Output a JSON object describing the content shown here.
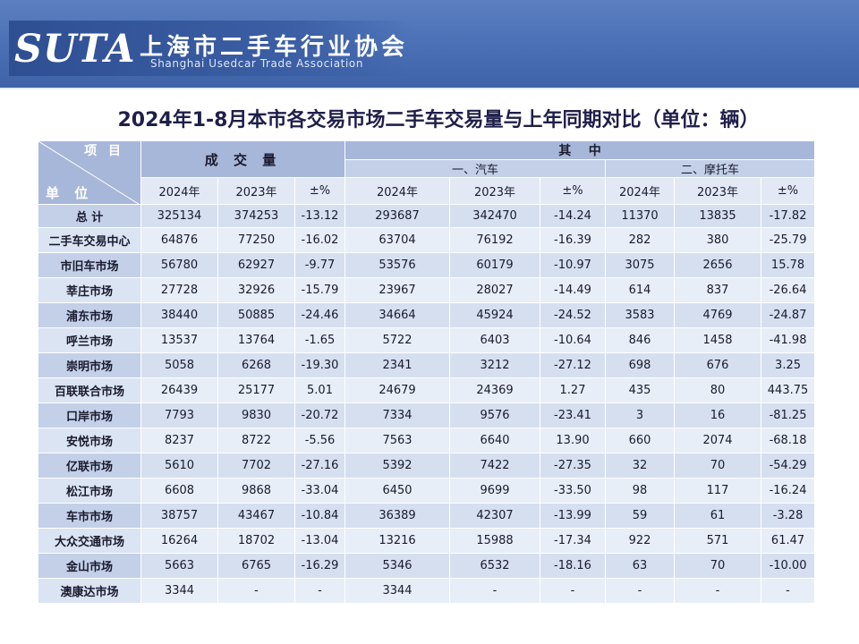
{
  "header": {
    "logo_text": "SUTA",
    "org_name_cn": "上海市二手车行业协会",
    "org_name_en": "Shanghai Usedcar Trade Association",
    "colors": {
      "banner": "#4a6fb5",
      "header_cell": "#a7b7d9",
      "row_a": "#d5dff0",
      "row_b": "#e8eef8"
    }
  },
  "title": "2024年1-8月本市各交易市场二手车交易量与上年同期对比（单位：辆）",
  "table": {
    "corner_top": "项 目",
    "corner_bottom": "单 位",
    "group_total": "成 交 量",
    "group_of_which": "其    中",
    "sub_car": "一、汽车",
    "sub_moto": "二、摩托车",
    "columns": [
      "2024年",
      "2023年",
      "±%",
      "2024年",
      "2023年",
      "±%",
      "2024年",
      "2023年",
      "±%"
    ],
    "rows": [
      {
        "name": "总 计",
        "values": [
          "325134",
          "374253",
          "-13.12",
          "293687",
          "342470",
          "-14.24",
          "11370",
          "13835",
          "-17.82"
        ]
      },
      {
        "name": "二手车交易中心",
        "values": [
          "64876",
          "77250",
          "-16.02",
          "63704",
          "76192",
          "-16.39",
          "282",
          "380",
          "-25.79"
        ]
      },
      {
        "name": "市旧车市场",
        "values": [
          "56780",
          "62927",
          "-9.77",
          "53576",
          "60179",
          "-10.97",
          "3075",
          "2656",
          "15.78"
        ]
      },
      {
        "name": "莘庄市场",
        "values": [
          "27728",
          "32926",
          "-15.79",
          "23967",
          "28027",
          "-14.49",
          "614",
          "837",
          "-26.64"
        ]
      },
      {
        "name": "浦东市场",
        "values": [
          "38440",
          "50885",
          "-24.46",
          "34664",
          "45924",
          "-24.52",
          "3583",
          "4769",
          "-24.87"
        ]
      },
      {
        "name": "呼兰市场",
        "values": [
          "13537",
          "13764",
          "-1.65",
          "5722",
          "6403",
          "-10.64",
          "846",
          "1458",
          "-41.98"
        ]
      },
      {
        "name": "崇明市场",
        "values": [
          "5058",
          "6268",
          "-19.30",
          "2341",
          "3212",
          "-27.12",
          "698",
          "676",
          "3.25"
        ]
      },
      {
        "name": "百联联合市场",
        "values": [
          "26439",
          "25177",
          "5.01",
          "24679",
          "24369",
          "1.27",
          "435",
          "80",
          "443.75"
        ]
      },
      {
        "name": "口岸市场",
        "values": [
          "7793",
          "9830",
          "-20.72",
          "7334",
          "9576",
          "-23.41",
          "3",
          "16",
          "-81.25"
        ]
      },
      {
        "name": "安悦市场",
        "values": [
          "8237",
          "8722",
          "-5.56",
          "7563",
          "6640",
          "13.90",
          "660",
          "2074",
          "-68.18"
        ]
      },
      {
        "name": "亿联市场",
        "values": [
          "5610",
          "7702",
          "-27.16",
          "5392",
          "7422",
          "-27.35",
          "32",
          "70",
          "-54.29"
        ]
      },
      {
        "name": "松江市场",
        "values": [
          "6608",
          "9868",
          "-33.04",
          "6450",
          "9699",
          "-33.50",
          "98",
          "117",
          "-16.24"
        ]
      },
      {
        "name": "车市市场",
        "values": [
          "38757",
          "43467",
          "-10.84",
          "36389",
          "42307",
          "-13.99",
          "59",
          "61",
          "-3.28"
        ]
      },
      {
        "name": "大众交通市场",
        "values": [
          "16264",
          "18702",
          "-13.04",
          "13216",
          "15988",
          "-17.34",
          "922",
          "571",
          "61.47"
        ]
      },
      {
        "name": "金山市场",
        "values": [
          "5663",
          "6765",
          "-16.29",
          "5346",
          "6532",
          "-18.16",
          "63",
          "70",
          "-10.00"
        ]
      },
      {
        "name": "澳康达市场",
        "values": [
          "3344",
          "-",
          "-",
          "3344",
          "-",
          "-",
          "-",
          "-",
          "-"
        ]
      }
    ]
  }
}
